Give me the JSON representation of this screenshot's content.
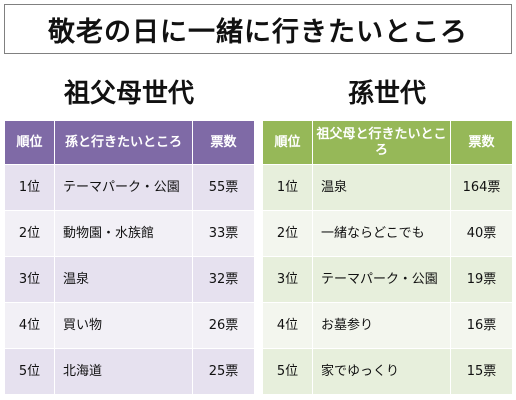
{
  "title": "敬老の日に一緒に行きたいところ",
  "chart_data": [
    {
      "type": "table",
      "title": "祖父母世代",
      "columns": [
        "順位",
        "孫と行きたいところ",
        "票数"
      ],
      "rows": [
        {
          "rank": "1位",
          "place": "テーマパーク・公園",
          "votes": "55票"
        },
        {
          "rank": "2位",
          "place": "動物園・水族館",
          "votes": "33票"
        },
        {
          "rank": "3位",
          "place": "温泉",
          "votes": "32票"
        },
        {
          "rank": "4位",
          "place": "買い物",
          "votes": "26票"
        },
        {
          "rank": "5位",
          "place": "北海道",
          "votes": "25票"
        }
      ],
      "values": [
        55,
        33,
        32,
        26,
        25
      ],
      "header_color": "#7f6aa6",
      "row_color": "#e6e1ef"
    },
    {
      "type": "table",
      "title": "孫世代",
      "columns": [
        "順位",
        "祖父母と行きたいところ",
        "票数"
      ],
      "rows": [
        {
          "rank": "1位",
          "place": "温泉",
          "votes": "164票"
        },
        {
          "rank": "2位",
          "place": "一緒ならどこでも",
          "votes": "40票"
        },
        {
          "rank": "3位",
          "place": "テーマパーク・公園",
          "votes": "19票"
        },
        {
          "rank": "4位",
          "place": "お墓参り",
          "votes": "16票"
        },
        {
          "rank": "5位",
          "place": "家でゆっくり",
          "votes": "15票"
        }
      ],
      "values": [
        164,
        40,
        19,
        16,
        15
      ],
      "header_color": "#96b858",
      "row_color": "#e7efdc"
    }
  ]
}
